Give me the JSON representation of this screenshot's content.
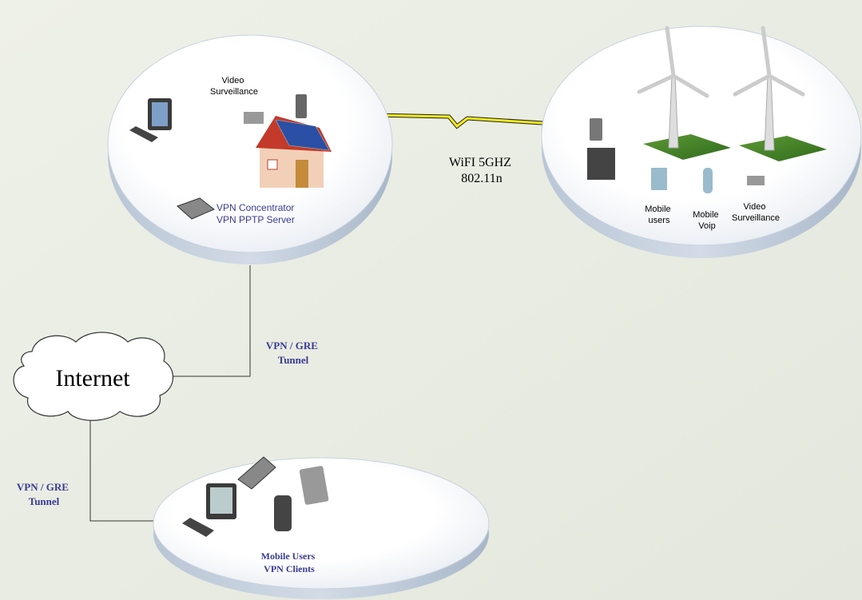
{
  "site": {
    "camera_label": [
      "Video",
      "Surveillance"
    ],
    "server_label": [
      "VPN Concentrator",
      "VPN PPTP Server"
    ]
  },
  "link": {
    "label": [
      "WiFI 5GHZ",
      "802.11n"
    ]
  },
  "remote": {
    "labels": [
      [
        "Mobile",
        "users"
      ],
      [
        "Mobile",
        "Voip"
      ],
      [
        "Video",
        "Surveillance"
      ]
    ]
  },
  "tunnels": [
    [
      "VPN / GRE",
      "Tunnel"
    ],
    [
      "VPN / GRE",
      "Tunnel"
    ]
  ],
  "internet": {
    "label": "Internet"
  },
  "clients": {
    "label": [
      "Mobile Users",
      "VPN Clients"
    ]
  }
}
